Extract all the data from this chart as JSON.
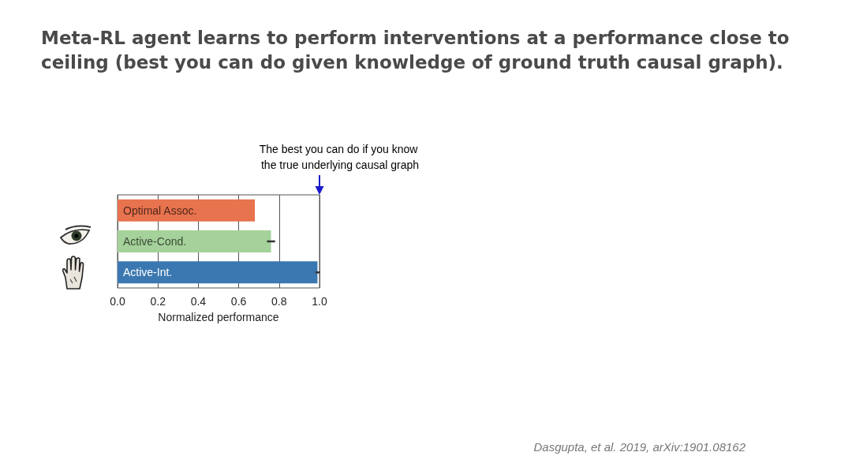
{
  "chart_data": {
    "type": "bar",
    "orientation": "horizontal",
    "title": "Meta-RL agent learns to perform interventions at a performance close to ceiling (best you can do given knowledge of ground truth causal graph).",
    "xlabel": "Normalized performance",
    "categories": [
      "Optimal Assoc.",
      "Active-Cond.",
      "Active-Int."
    ],
    "values": [
      0.68,
      0.76,
      0.99
    ],
    "errors": [
      null,
      0.02,
      0.01
    ],
    "colors": [
      "#e8734f",
      "#a5d19a",
      "#3b78b1"
    ],
    "xlim": [
      0,
      1
    ],
    "xticks": [
      {
        "value": 0,
        "label": "0.0"
      },
      0.2,
      0.4,
      0.6,
      0.8,
      {
        "value": 1,
        "label": "1.0"
      }
    ],
    "grid": "x",
    "ref_lines": [
      {
        "axis": "x",
        "value": 1,
        "label": "The best you can do if you know the true underlying causal graph",
        "color": "#1a1acc"
      }
    ],
    "annotations": [
      "Dasgupta, et al. 2019, arXiv:1901.08162"
    ]
  }
}
